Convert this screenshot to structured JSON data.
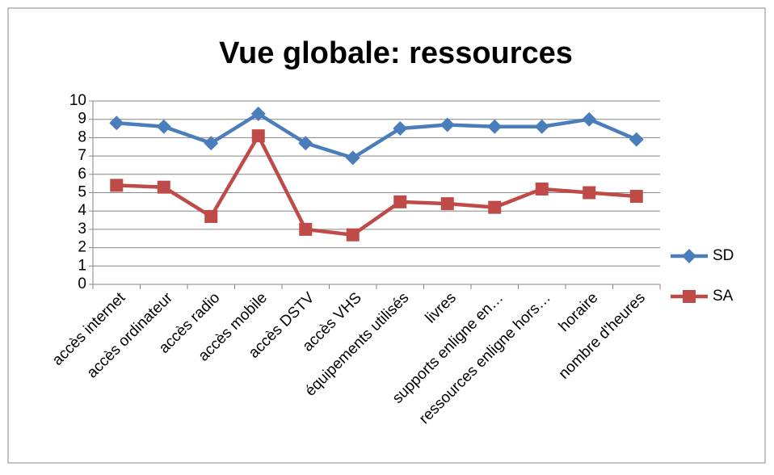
{
  "chart_data": {
    "type": "line",
    "title": "Vue globale: ressources",
    "categories": [
      "accès internet",
      "accès ordinateur",
      "accès radio",
      "accès mobile",
      "accès DSTV",
      "accès VHS",
      "équipements utilisés",
      "livres",
      "supports enligne en…",
      "ressources enligne hors…",
      "horaire",
      "nombre d'heures"
    ],
    "series": [
      {
        "name": "SD",
        "color": "#4a7ebb",
        "marker": "diamond",
        "values": [
          8.8,
          8.6,
          7.7,
          9.3,
          7.7,
          6.9,
          8.5,
          8.7,
          8.6,
          8.6,
          9.0,
          7.9
        ]
      },
      {
        "name": "SA",
        "color": "#be4b48",
        "marker": "square",
        "values": [
          5.4,
          5.3,
          3.7,
          8.1,
          3.0,
          2.7,
          4.5,
          4.4,
          4.2,
          5.2,
          5.0,
          4.8
        ]
      }
    ],
    "ylim": [
      0,
      10
    ],
    "yticks": [
      0,
      1,
      2,
      3,
      4,
      5,
      6,
      7,
      8,
      9,
      10
    ],
    "grid": true,
    "legend": "right"
  }
}
